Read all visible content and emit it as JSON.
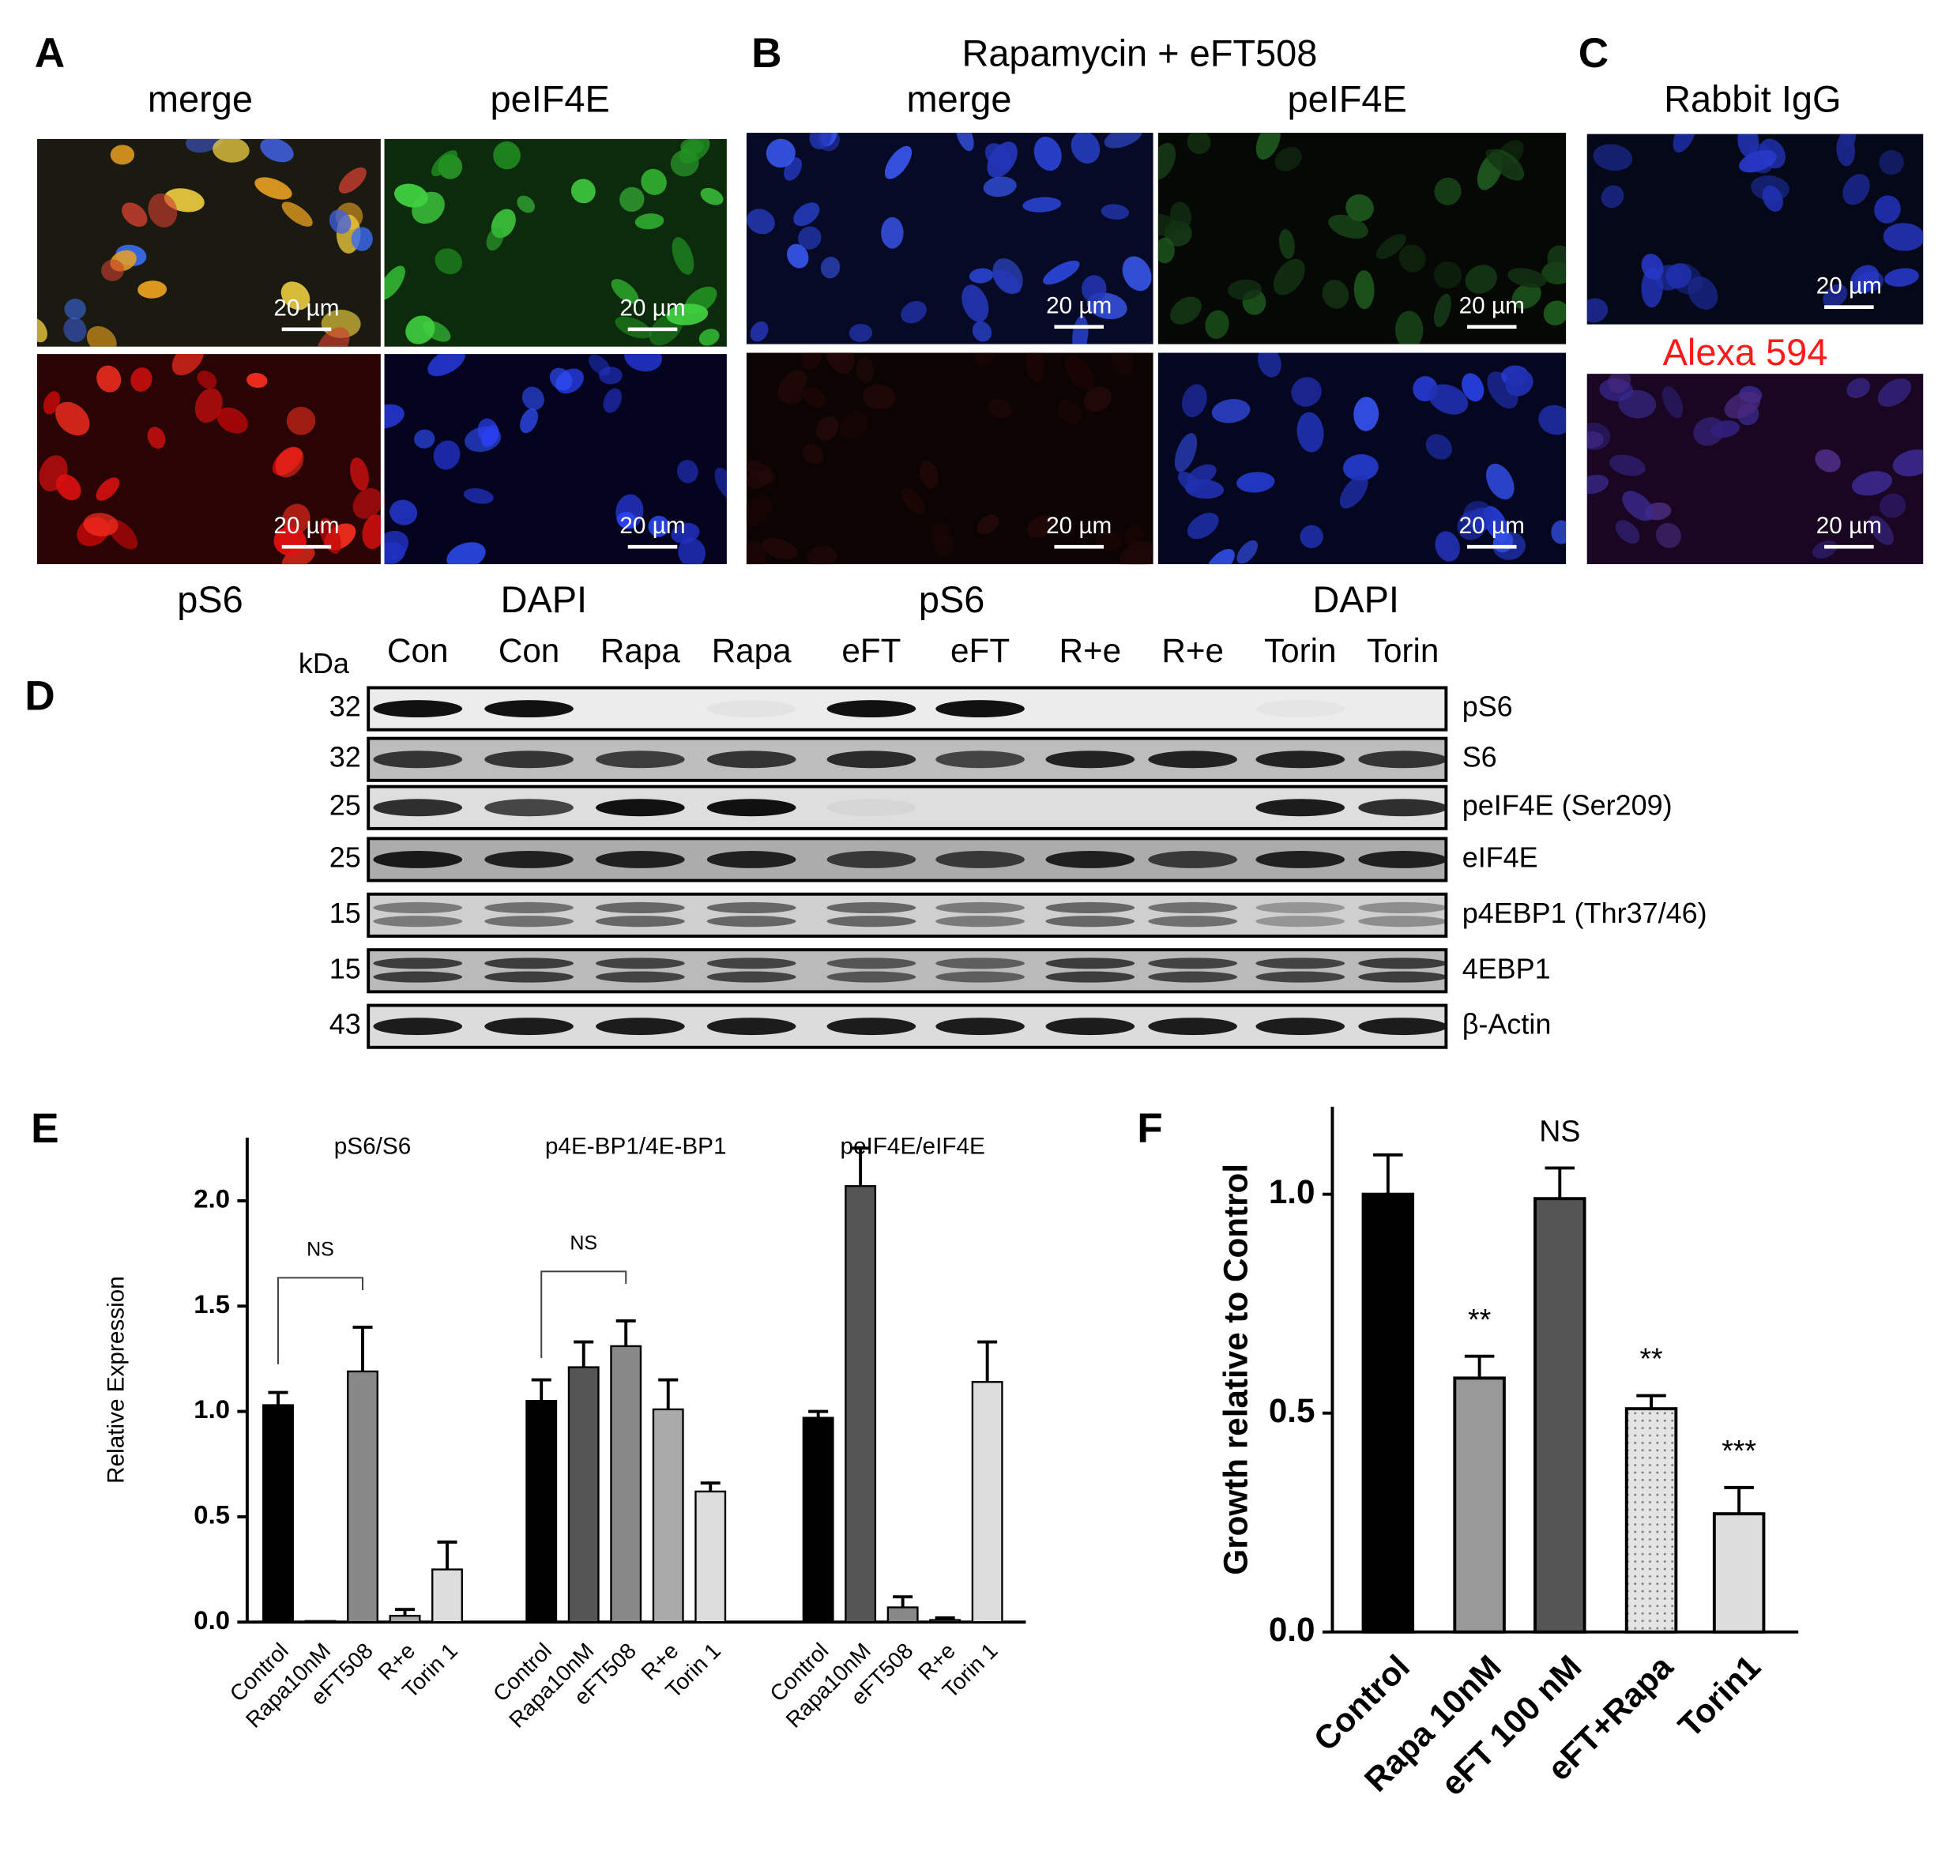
{
  "panels": {
    "A": {
      "letter": "A",
      "titles": [
        "merge",
        "peIF4E"
      ],
      "bottom_labels": [
        "pS6",
        "DAPI"
      ]
    },
    "B": {
      "letter": "B",
      "title": "Rapamycin + eFT508",
      "titles": [
        "merge",
        "peIF4E"
      ],
      "bottom_labels": [
        "pS6",
        "DAPI"
      ]
    },
    "C": {
      "letter": "C",
      "titles": [
        "Rabbit IgG",
        "Alexa 594"
      ]
    },
    "scale_bar": "20 µm"
  },
  "blot": {
    "letter": "D",
    "unit": "kDa",
    "lanes": [
      "Con",
      "Con",
      "Rapa",
      "Rapa",
      "eFT",
      "eFT",
      "R+e",
      "R+e",
      "Torin",
      "Torin"
    ],
    "rows": [
      {
        "kda": 32,
        "name": "pS6"
      },
      {
        "kda": 32,
        "name": "S6"
      },
      {
        "kda": 25,
        "name": "peIF4E (Ser209)"
      },
      {
        "kda": 25,
        "name": "eIF4E"
      },
      {
        "kda": 15,
        "name": "p4EBP1 (Thr37/46)"
      },
      {
        "kda": 15,
        "name": "4EBP1"
      },
      {
        "kda": 43,
        "name": "β-Actin"
      }
    ]
  },
  "chart_data": [
    {
      "type": "grouped_bar",
      "letter": "E",
      "ylabel": "Relative Expression",
      "ylim": [
        0,
        2.3
      ],
      "yticks": [
        {
          "value": 0,
          "label": "0.0"
        },
        {
          "value": 0.5,
          "label": "0.5"
        },
        {
          "value": 1,
          "label": "1.0"
        },
        {
          "value": 1.5,
          "label": "1.5"
        },
        {
          "value": 2,
          "label": "2.0"
        }
      ],
      "colors": [
        "#000000",
        "#555555",
        "#888888",
        "#aaaaaa",
        "#dddddd"
      ],
      "groups": [
        {
          "name": "pS6/S6",
          "categories": [
            "Control",
            "Rapa10nM",
            "eFT508",
            "R+e",
            "Torin 1"
          ],
          "values": [
            1.03,
            0.005,
            1.19,
            0.03,
            0.25
          ],
          "errors": [
            0.06,
            0,
            0.21,
            0.03,
            0.13
          ],
          "bracket": {
            "label": "NS",
            "between": [
              "Control",
              "eFT508"
            ]
          }
        },
        {
          "name": "p4E-BP1/4E-BP1",
          "categories": [
            "Control",
            "Rapa10nM",
            "eFT508",
            "R+e",
            "Torin 1"
          ],
          "values": [
            1.05,
            1.21,
            1.31,
            1.01,
            0.62
          ],
          "errors": [
            0.1,
            0.12,
            0.12,
            0.14,
            0.04
          ],
          "bracket": {
            "label": "NS",
            "between": [
              "Control",
              "eFT508"
            ]
          }
        },
        {
          "name": "peIF4E/eIF4E",
          "categories": [
            "Control",
            "Rapa10nM",
            "eFT508",
            "R+e",
            "Torin 1"
          ],
          "values": [
            0.97,
            2.07,
            0.07,
            0.01,
            1.14
          ],
          "errors": [
            0.03,
            0.18,
            0.05,
            0.01,
            0.19
          ]
        }
      ]
    },
    {
      "type": "bar",
      "letter": "F",
      "ylabel": "Growth relative to Control",
      "categories": [
        "Control",
        "Rapa 10nM",
        "eFT 100 nM",
        "eFT+Rapa",
        "Torin1"
      ],
      "values": [
        1.0,
        0.58,
        0.99,
        0.51,
        0.27
      ],
      "errors": [
        0.09,
        0.05,
        0.07,
        0.03,
        0.06
      ],
      "annotations": [
        null,
        "**",
        "NS",
        "**",
        "***"
      ],
      "colors": [
        "#000000",
        "#999999",
        "#555555",
        "#dddddd",
        "#dddddd"
      ],
      "patterns": [
        null,
        null,
        null,
        "dots",
        null
      ],
      "ylim": [
        0,
        1.2
      ],
      "yticks": [
        {
          "value": 0,
          "label": "0.0"
        },
        {
          "value": 0.5,
          "label": "0.5"
        },
        {
          "value": 1,
          "label": "1.0"
        }
      ]
    }
  ]
}
